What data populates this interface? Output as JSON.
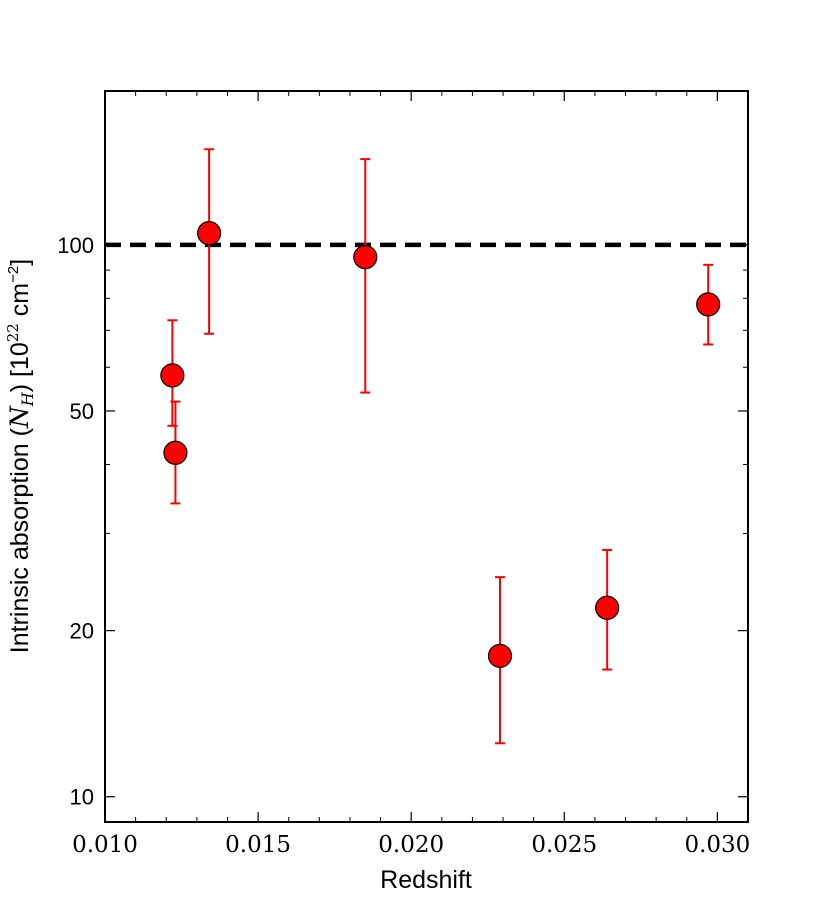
{
  "chart_data": {
    "type": "scatter",
    "xlabel": "Redshift",
    "ylabel_prefix": "Intrinsic absorption (",
    "ylabel_math": "N",
    "ylabel_math_sub": "H",
    "ylabel_suffix": ") [10",
    "ylabel_exp": "22",
    "ylabel_unit": " cm",
    "ylabel_unit_exp": "−2",
    "ylabel_close": "]",
    "xlim": [
      0.01,
      0.031
    ],
    "ylim": [
      9,
      190
    ],
    "yscale": "log",
    "grid": false,
    "x_ticks": [
      0.01,
      0.015,
      0.02,
      0.025,
      0.03
    ],
    "x_tick_labels": [
      "0.010",
      "0.015",
      "0.020",
      "0.025",
      "0.030"
    ],
    "y_ticks": [
      10,
      20,
      50,
      100
    ],
    "y_tick_labels": [
      "10",
      "20",
      "50",
      "100"
    ],
    "reference_line": {
      "y": 100,
      "style": "dashed",
      "color": "#000000"
    },
    "marker_color": "#ff0000",
    "errorbar_color": "#ff0000",
    "points": [
      {
        "x": 0.0122,
        "y": 58,
        "y_lower": 47,
        "y_upper": 73
      },
      {
        "x": 0.0123,
        "y": 42,
        "y_lower": 34,
        "y_upper": 52
      },
      {
        "x": 0.0134,
        "y": 105,
        "y_lower": 69,
        "y_upper": 149
      },
      {
        "x": 0.0185,
        "y": 95,
        "y_lower": 54,
        "y_upper": 143
      },
      {
        "x": 0.0229,
        "y": 18,
        "y_lower": 12.5,
        "y_upper": 25
      },
      {
        "x": 0.0264,
        "y": 22,
        "y_lower": 17,
        "y_upper": 28
      },
      {
        "x": 0.0297,
        "y": 78,
        "y_lower": 66,
        "y_upper": 92
      }
    ]
  }
}
